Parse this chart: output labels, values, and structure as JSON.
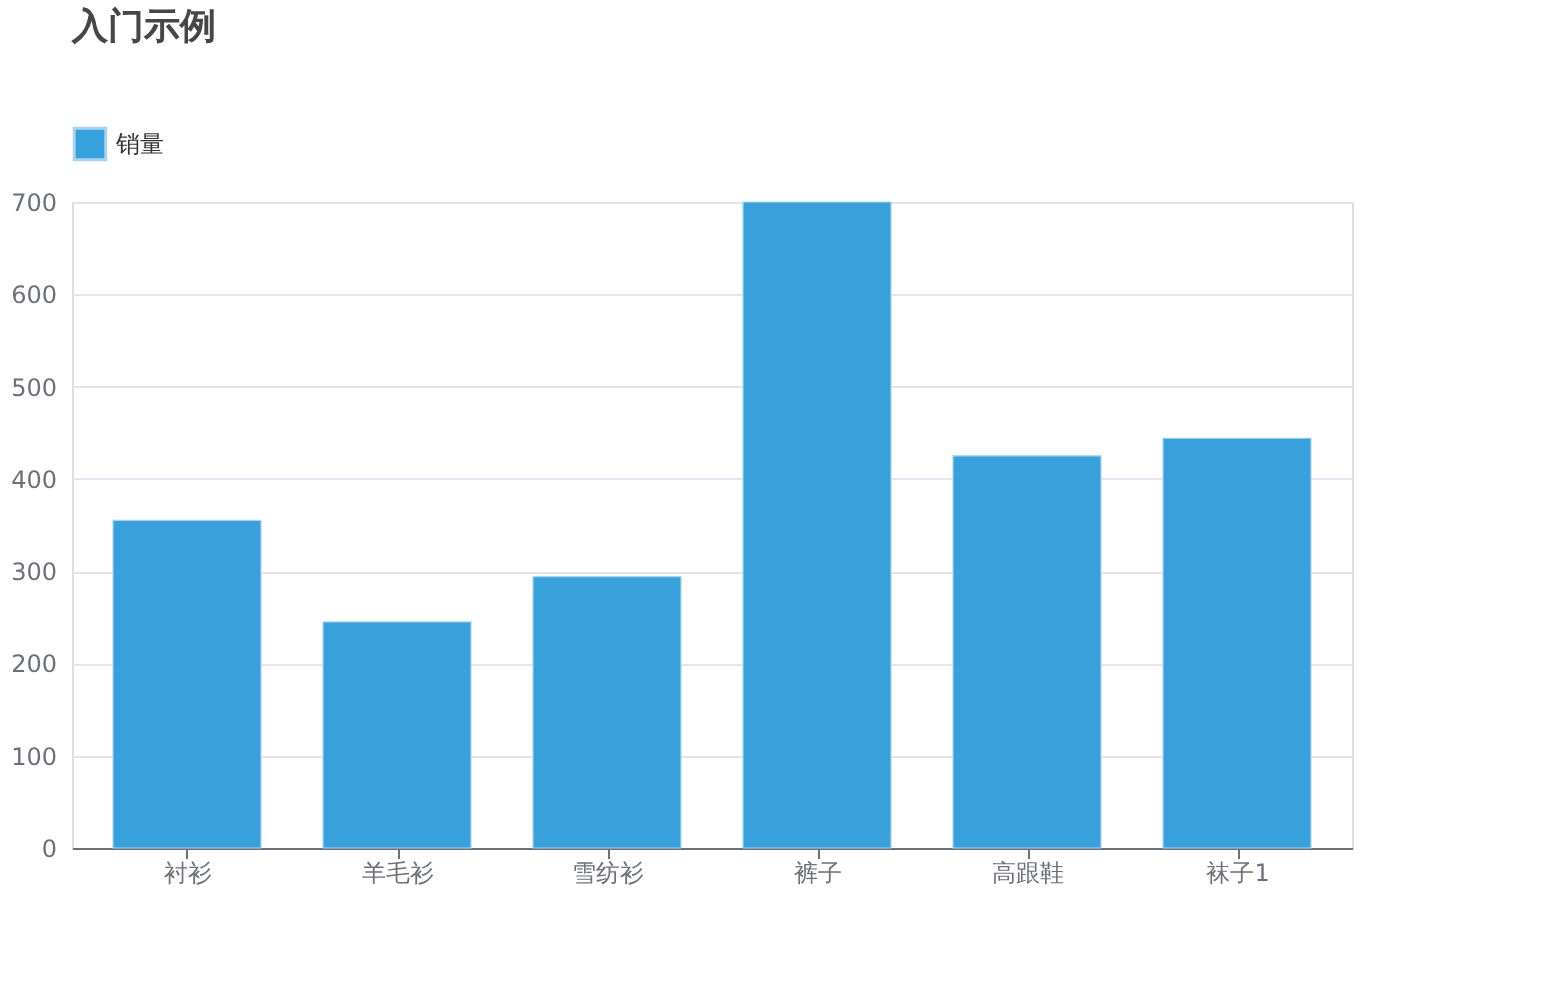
{
  "chart_data": {
    "type": "bar",
    "title": "入门示例",
    "categories": [
      "衬衫",
      "羊毛衫",
      "雪纺衫",
      "裤子",
      "高跟鞋",
      "袜子1"
    ],
    "series": [
      {
        "name": "销量",
        "color": "#38a1db",
        "values": [
          355,
          245,
          294,
          700,
          425,
          444
        ]
      }
    ],
    "ylim": [
      0,
      700
    ],
    "yticks": [
      0,
      100,
      200,
      300,
      400,
      500,
      600,
      700
    ],
    "grid": "y",
    "legend": "top"
  }
}
